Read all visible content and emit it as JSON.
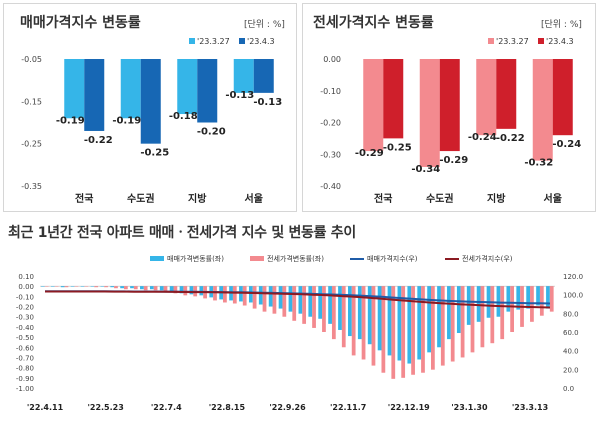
{
  "panels": {
    "sale": {
      "title": "매매가격지수 변동률",
      "unit": "[단위 : %]"
    },
    "jeonse": {
      "title": "전세가격지수 변동률",
      "unit": "[단위 : %]"
    },
    "trend": {
      "title": "최근 1년간 전국 아파트 매매ㆍ전세가격 지수 및 변동률 추이"
    }
  },
  "colors": {
    "sale_light": "#35b5e8",
    "sale_dark": "#1767b4",
    "jeonse_light": "#f38a8f",
    "jeonse_dark": "#cf1f2b",
    "sale_index_line": "#1f5ca8",
    "jeonse_index_line": "#8b1a22"
  },
  "chart_data": [
    {
      "id": "sale",
      "type": "bar",
      "categories": [
        "전국",
        "수도권",
        "지방",
        "서울"
      ],
      "series": [
        {
          "name": "'23.3.27",
          "values": [
            -0.19,
            -0.19,
            -0.18,
            -0.13
          ]
        },
        {
          "name": "'23.4.3",
          "values": [
            -0.22,
            -0.25,
            -0.2,
            -0.13
          ]
        }
      ],
      "ylim": [
        -0.35,
        -0.05
      ],
      "yticks": [
        "-0.05",
        "-0.15",
        "-0.25",
        "-0.35"
      ],
      "legend": "top-right"
    },
    {
      "id": "jeonse",
      "type": "bar",
      "categories": [
        "전국",
        "수도권",
        "지방",
        "서울"
      ],
      "series": [
        {
          "name": "'23.3.27",
          "values": [
            -0.29,
            -0.34,
            -0.24,
            -0.32
          ]
        },
        {
          "name": "'23.4.3",
          "values": [
            -0.25,
            -0.29,
            -0.22,
            -0.24
          ]
        }
      ],
      "ylim": [
        -0.4,
        0.0
      ],
      "yticks": [
        "0.00",
        "-0.10",
        "-0.20",
        "-0.30",
        "-0.40"
      ],
      "legend": "top-right"
    },
    {
      "id": "trend",
      "type": "bar",
      "x_labels": [
        "'22.4.11",
        "'22.5.23",
        "'22.7.4",
        "'22.8.15",
        "'22.9.26",
        "'22.11.7",
        "'22.12.19",
        "'23.1.30",
        "'23.3.13"
      ],
      "left_ylim": [
        -1.0,
        0.1
      ],
      "left_yticks": [
        "0.10",
        "0.00",
        "-0.10",
        "-0.20",
        "-0.30",
        "-0.40",
        "-0.50",
        "-0.60",
        "-0.70",
        "-0.80",
        "-0.90",
        "-1.00"
      ],
      "right_ylim": [
        0,
        120
      ],
      "right_yticks": [
        "120.0",
        "100.0",
        "80.0",
        "60.0",
        "40.0",
        "20.0",
        "0.0"
      ],
      "series": [
        {
          "name": "매매가격변동률(좌)",
          "kind": "bar",
          "values": [
            0.0,
            0.0,
            -0.01,
            0.0,
            0.0,
            0.0,
            0.0,
            -0.01,
            -0.02,
            -0.02,
            -0.03,
            -0.03,
            -0.04,
            -0.05,
            -0.07,
            -0.08,
            -0.09,
            -0.11,
            -0.13,
            -0.14,
            -0.15,
            -0.16,
            -0.18,
            -0.2,
            -0.22,
            -0.25,
            -0.27,
            -0.3,
            -0.32,
            -0.37,
            -0.43,
            -0.49,
            -0.52,
            -0.57,
            -0.63,
            -0.68,
            -0.73,
            -0.76,
            -0.72,
            -0.65,
            -0.6,
            -0.52,
            -0.46,
            -0.38,
            -0.35,
            -0.31,
            -0.3,
            -0.25,
            -0.23,
            -0.22,
            -0.19,
            -0.22
          ]
        },
        {
          "name": "전세가격변동률(좌)",
          "kind": "bar",
          "values": [
            0.0,
            0.0,
            -0.01,
            0.0,
            0.0,
            -0.01,
            -0.01,
            -0.02,
            -0.03,
            -0.03,
            -0.04,
            -0.04,
            -0.05,
            -0.07,
            -0.09,
            -0.1,
            -0.12,
            -0.14,
            -0.16,
            -0.17,
            -0.19,
            -0.22,
            -0.25,
            -0.27,
            -0.3,
            -0.34,
            -0.37,
            -0.41,
            -0.45,
            -0.52,
            -0.6,
            -0.68,
            -0.72,
            -0.78,
            -0.85,
            -0.91,
            -0.9,
            -0.87,
            -0.85,
            -0.82,
            -0.78,
            -0.74,
            -0.7,
            -0.65,
            -0.6,
            -0.56,
            -0.52,
            -0.45,
            -0.4,
            -0.35,
            -0.29,
            -0.25
          ]
        },
        {
          "name": "매매가격지수(우)",
          "kind": "line",
          "values": [
            103.6,
            103.6,
            103.6,
            103.6,
            103.6,
            103.6,
            103.6,
            103.5,
            103.5,
            103.4,
            103.4,
            103.4,
            103.3,
            103.3,
            103.2,
            103.1,
            103.0,
            102.9,
            102.8,
            102.6,
            102.5,
            102.3,
            102.1,
            101.9,
            101.7,
            101.4,
            101.1,
            100.8,
            100.5,
            100.2,
            99.8,
            99.3,
            98.8,
            98.3,
            97.7,
            97.0,
            96.3,
            95.6,
            94.9,
            94.3,
            93.7,
            93.2,
            92.8,
            92.4,
            92.1,
            91.8,
            91.5,
            91.3,
            91.1,
            90.9,
            90.7,
            90.5
          ]
        },
        {
          "name": "전세가격지수(우)",
          "kind": "line",
          "values": [
            103.4,
            103.4,
            103.4,
            103.4,
            103.4,
            103.4,
            103.4,
            103.3,
            103.3,
            103.2,
            103.2,
            103.1,
            103.1,
            103.0,
            102.9,
            102.8,
            102.7,
            102.5,
            102.4,
            102.2,
            102.0,
            101.8,
            101.6,
            101.3,
            101.0,
            100.7,
            100.4,
            100.0,
            99.6,
            99.1,
            98.5,
            97.9,
            97.2,
            96.4,
            95.6,
            94.7,
            93.9,
            93.1,
            92.3,
            91.5,
            90.8,
            90.2,
            89.6,
            89.1,
            88.6,
            88.2,
            87.8,
            87.4,
            87.1,
            86.8,
            86.5,
            86.3
          ]
        }
      ],
      "legend": "top"
    }
  ]
}
